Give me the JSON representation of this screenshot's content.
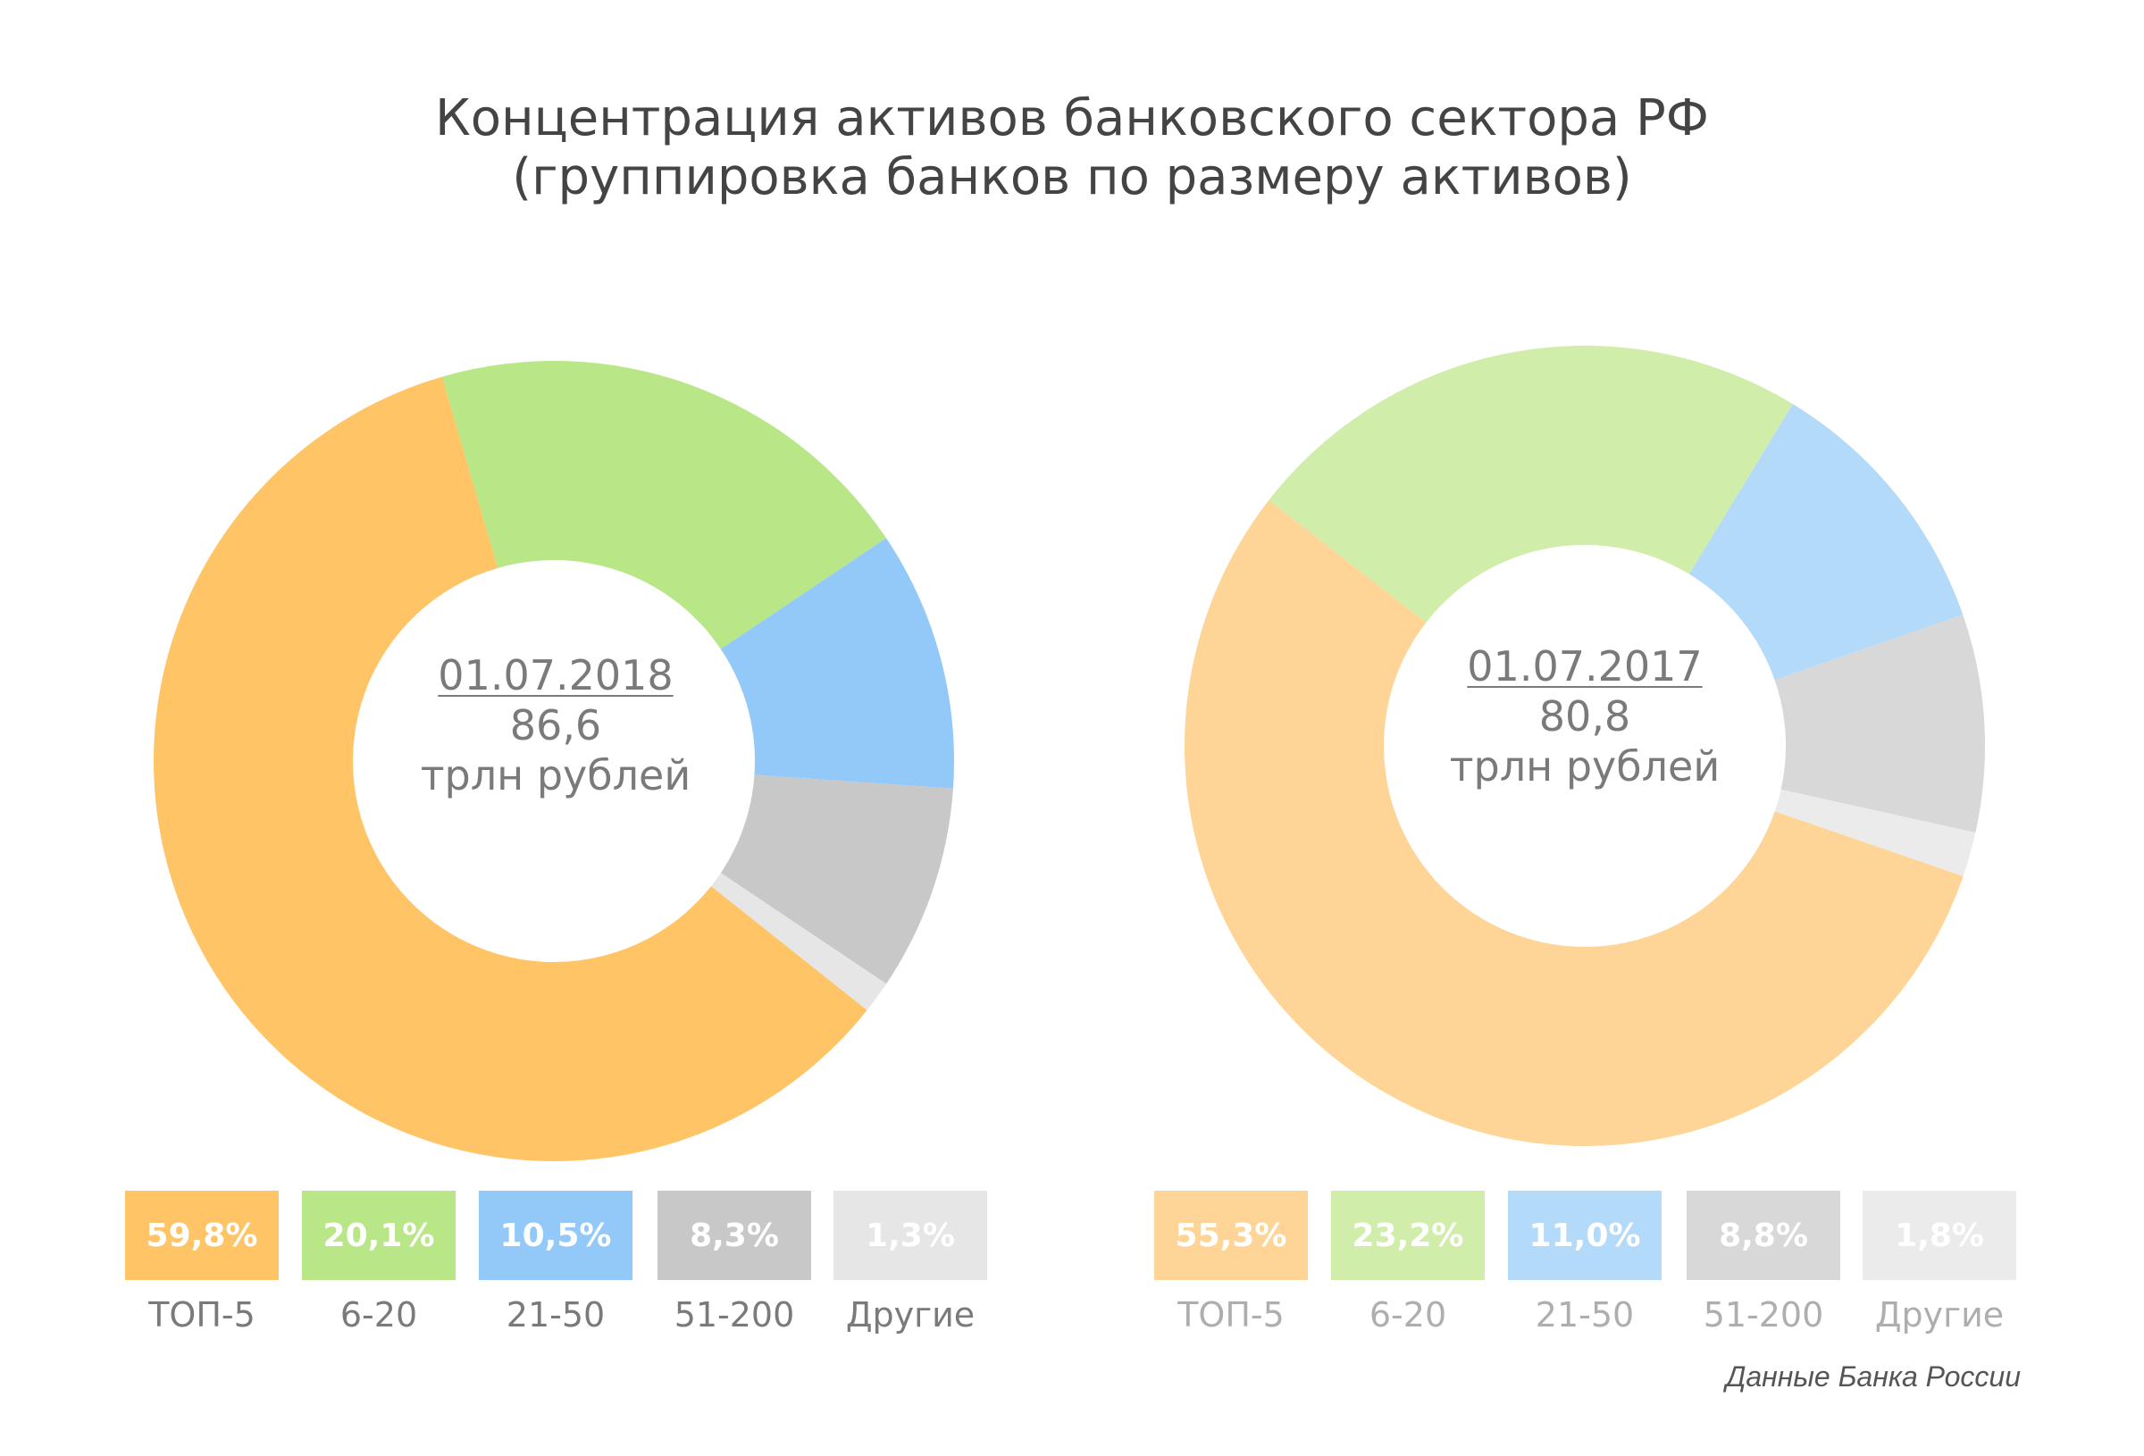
{
  "title": {
    "line1": "Концентрация активов банковского сектора РФ",
    "line2": "(группировка банков по размеру активов)"
  },
  "chart_data": [
    {
      "type": "pie",
      "center": {
        "date": "01.07.2018",
        "value": "86,6",
        "unit": "трлн рублей"
      },
      "categories": [
        "ТОП-5",
        "6-20",
        "21-50",
        "51-200",
        "Другие"
      ],
      "values": [
        59.8,
        20.1,
        10.5,
        8.3,
        1.3
      ],
      "value_labels": [
        "59,8%",
        "20,1%",
        "10,5%",
        "8,3%",
        "1,3%"
      ],
      "colors": [
        "#FEC466",
        "#B9E787",
        "#92C9F9",
        "#C8C8C8",
        "#E6E6E6"
      ]
    },
    {
      "type": "pie",
      "center": {
        "date": "01.07.2017",
        "value": "80,8",
        "unit": "трлн рублей"
      },
      "categories": [
        "ТОП-5",
        "6-20",
        "21-50",
        "51-200",
        "Другие"
      ],
      "values": [
        55.3,
        23.2,
        11.0,
        8.8,
        1.8
      ],
      "value_labels": [
        "55,3%",
        "23,2%",
        "11,0%",
        "8,8%",
        "1,8%"
      ],
      "colors": [
        "#FED597",
        "#D0EDAA",
        "#B4DAF9",
        "#D8D8D8",
        "#EBEBEB"
      ]
    }
  ],
  "source": "Данные Банка России"
}
